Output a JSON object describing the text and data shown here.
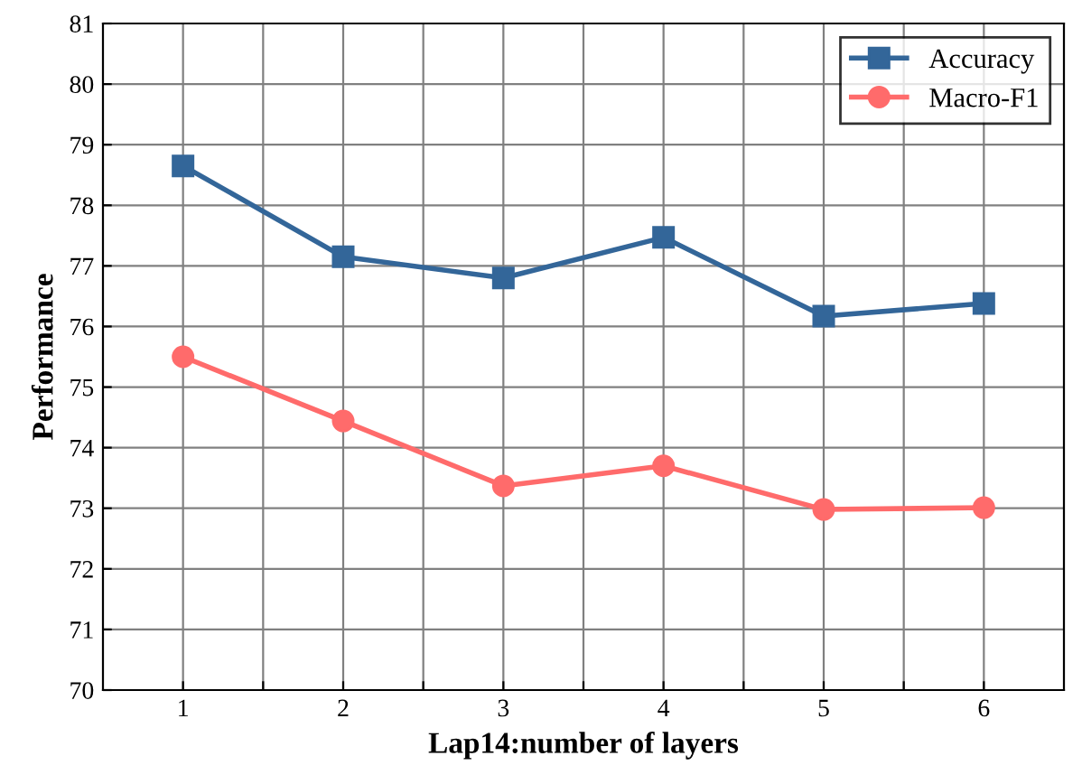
{
  "chart_data": {
    "type": "line",
    "xlabel": "Lap14:number of layers",
    "ylabel": "Performance",
    "x": [
      1,
      2,
      3,
      4,
      5,
      6
    ],
    "series": [
      {
        "name": "Accuracy",
        "color": "#336699",
        "marker": "square",
        "values": [
          78.65,
          77.15,
          76.8,
          77.47,
          76.17,
          76.38
        ]
      },
      {
        "name": "Macro-F1",
        "color": "#ff6b6b",
        "marker": "circle",
        "values": [
          75.5,
          74.44,
          73.37,
          73.7,
          72.98,
          73.01
        ]
      }
    ],
    "xlim": [
      0.5,
      6.5
    ],
    "xticks": [
      1,
      {
        "value": 1.5,
        "label": null
      },
      2,
      {
        "value": 2.5,
        "label": null
      },
      3,
      {
        "value": 3.5,
        "label": null
      },
      4,
      {
        "value": 4.5,
        "label": null
      },
      5,
      {
        "value": 5.5,
        "label": null
      },
      6
    ],
    "ylim": [
      70,
      81
    ],
    "yticks": [
      70,
      71,
      72,
      73,
      74,
      75,
      76,
      77,
      78,
      79,
      80,
      81
    ],
    "grid": true,
    "legend": "top right",
    "line_style": "solid"
  }
}
